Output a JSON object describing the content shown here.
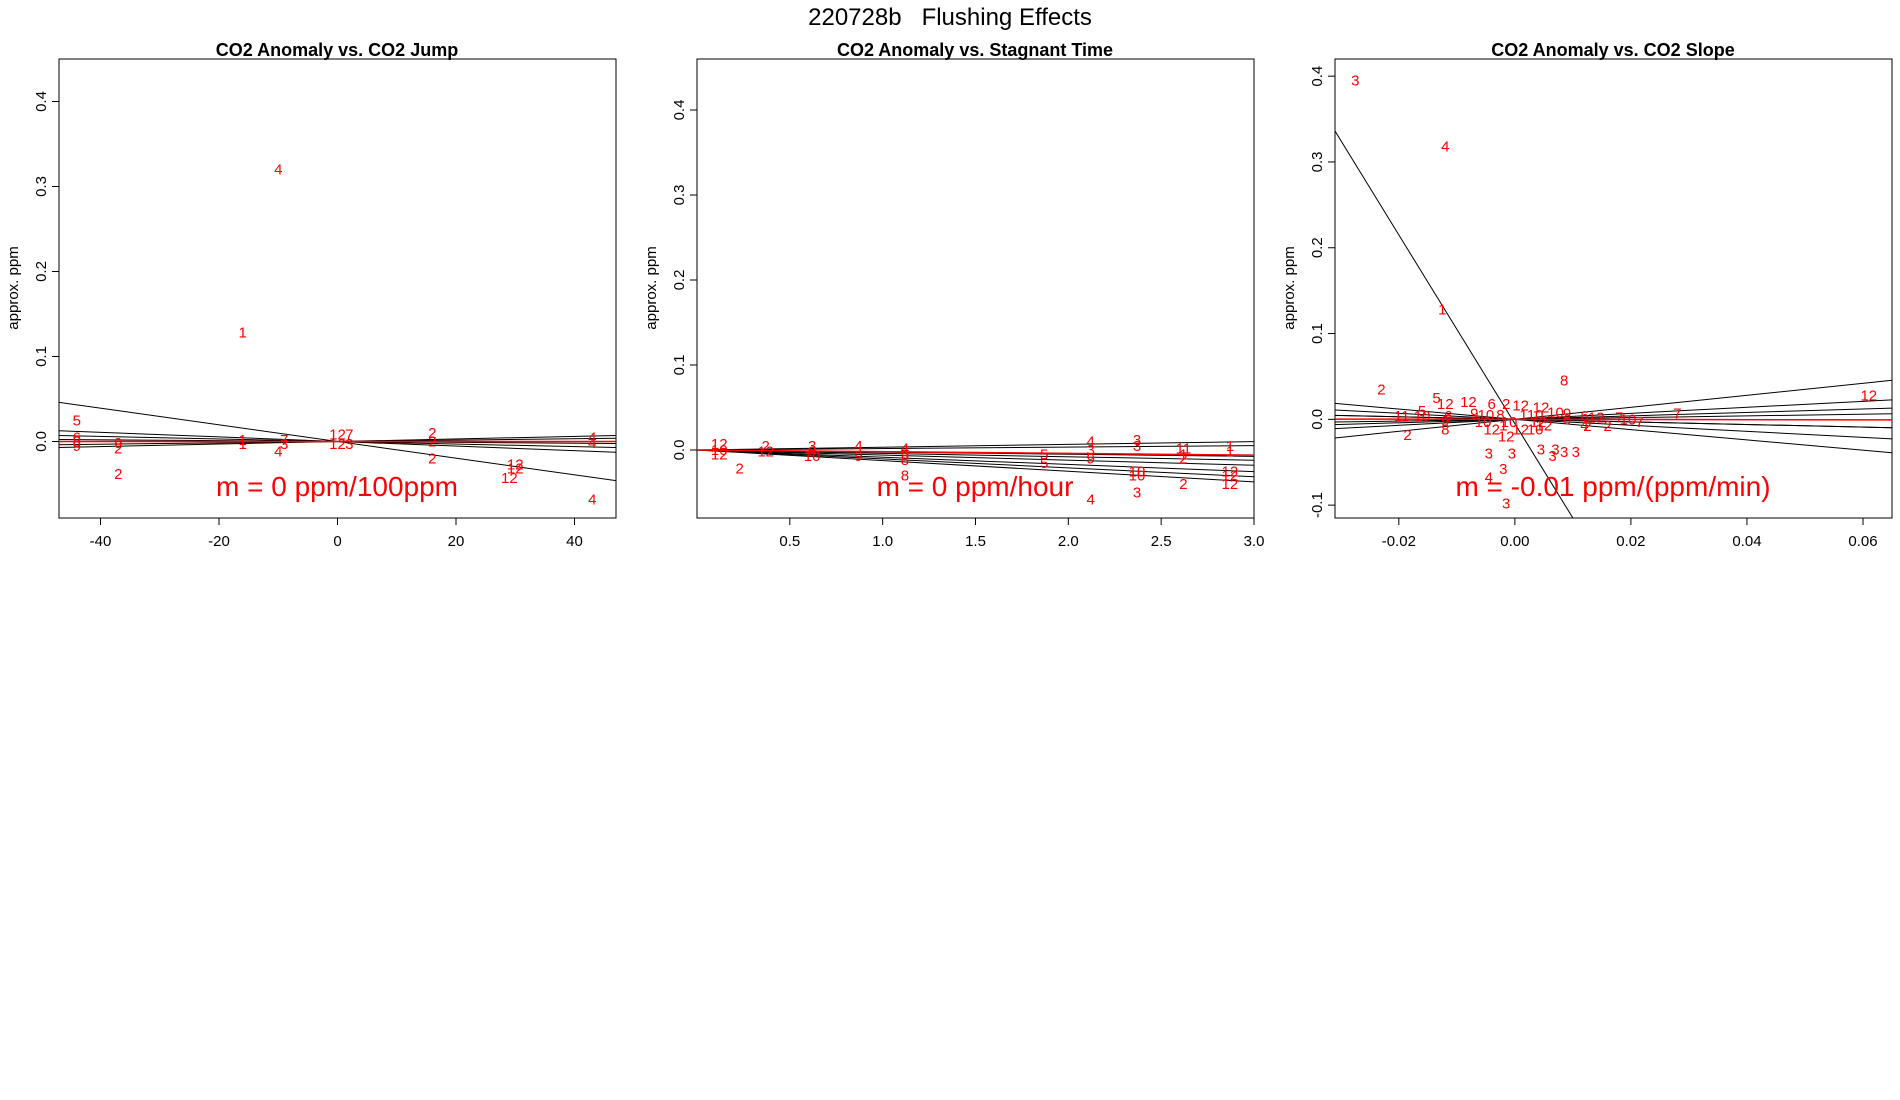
{
  "page_title": "220728b   Flushing Effects",
  "colors": {
    "points": "#ff0000",
    "fit_line": "#000000",
    "mean_line": "#ff0000",
    "axis": "#000000"
  },
  "chart_data": [
    {
      "type": "scatter",
      "title": "CO2 Anomaly vs. CO2 Jump",
      "xlabel": "",
      "ylabel": "approx. ppm",
      "xlim": [
        -47,
        47
      ],
      "ylim": [
        -0.09,
        0.45
      ],
      "xticks": [
        -40,
        -20,
        0,
        20,
        40
      ],
      "yticks": [
        0.0,
        0.1,
        0.2,
        0.3,
        0.4
      ],
      "xtick_labels": [
        "-40",
        "-20",
        "0",
        "20",
        "40"
      ],
      "ytick_labels": [
        "0.0",
        "0.1",
        "0.2",
        "0.3",
        "0.4"
      ],
      "slope_text": "m = 0 ppm/100ppm",
      "points": [
        {
          "x": -44,
          "y": 0.025,
          "label": "5"
        },
        {
          "x": -44,
          "y": 0.005,
          "label": "6"
        },
        {
          "x": -44,
          "y": 0.0,
          "label": "8"
        },
        {
          "x": -44,
          "y": -0.005,
          "label": "9"
        },
        {
          "x": -37,
          "y": -0.002,
          "label": "9"
        },
        {
          "x": -37,
          "y": -0.008,
          "label": "2"
        },
        {
          "x": -37,
          "y": -0.038,
          "label": "2"
        },
        {
          "x": -16,
          "y": 0.128,
          "label": "1"
        },
        {
          "x": -16,
          "y": 0.002,
          "label": "1"
        },
        {
          "x": -16,
          "y": -0.003,
          "label": "1"
        },
        {
          "x": -10,
          "y": 0.32,
          "label": "4"
        },
        {
          "x": -9,
          "y": 0.002,
          "label": "7"
        },
        {
          "x": -9,
          "y": -0.003,
          "label": "3"
        },
        {
          "x": -10,
          "y": -0.012,
          "label": "4"
        },
        {
          "x": 0,
          "y": 0.008,
          "label": "12"
        },
        {
          "x": 2,
          "y": 0.008,
          "label": "7"
        },
        {
          "x": 0,
          "y": -0.003,
          "label": "12"
        },
        {
          "x": 2,
          "y": -0.003,
          "label": "3"
        },
        {
          "x": 16,
          "y": 0.01,
          "label": "2"
        },
        {
          "x": 16,
          "y": 0.0,
          "label": "2"
        },
        {
          "x": 16,
          "y": -0.02,
          "label": "2"
        },
        {
          "x": 30,
          "y": -0.027,
          "label": "12"
        },
        {
          "x": 30,
          "y": -0.032,
          "label": "12"
        },
        {
          "x": 29,
          "y": -0.043,
          "label": "12"
        },
        {
          "x": 43,
          "y": 0.005,
          "label": "4"
        },
        {
          "x": 43,
          "y": -0.002,
          "label": "4"
        },
        {
          "x": 43,
          "y": -0.068,
          "label": "4"
        }
      ],
      "fit_lines": [
        {
          "intercept": 0.0,
          "slope": -0.00098
        },
        {
          "intercept": 0.0,
          "slope": 0.00015
        },
        {
          "intercept": 0.0,
          "slope": -0.00015
        },
        {
          "intercept": 0.0,
          "slope": -0.00027
        },
        {
          "intercept": 0.0,
          "slope": 8e-05
        },
        {
          "intercept": 0.0,
          "slope": -5e-05
        }
      ],
      "mean_line": {
        "intercept": 0.0,
        "slope": 0.0
      }
    },
    {
      "type": "scatter",
      "title": "CO2 Anomaly vs. Stagnant Time",
      "xlabel": "",
      "ylabel": "approx. ppm",
      "xlim": [
        0.0,
        3.0
      ],
      "ylim": [
        -0.08,
        0.46
      ],
      "xticks": [
        0.5,
        1.0,
        1.5,
        2.0,
        2.5,
        3.0
      ],
      "yticks": [
        0.0,
        0.1,
        0.2,
        0.3,
        0.4
      ],
      "xtick_labels": [
        "0.5",
        "1.0",
        "1.5",
        "2.0",
        "2.5",
        "3.0"
      ],
      "ytick_labels": [
        "0.0",
        "0.1",
        "0.2",
        "0.3",
        "0.4"
      ],
      "slope_text": "m = 0 ppm/hour",
      "points": [
        {
          "x": 0.12,
          "y": 0.007,
          "label": "12"
        },
        {
          "x": 0.12,
          "y": 0.0,
          "label": "10"
        },
        {
          "x": 0.12,
          "y": -0.005,
          "label": "12"
        },
        {
          "x": 0.23,
          "y": -0.022,
          "label": "2"
        },
        {
          "x": 0.37,
          "y": 0.005,
          "label": "2"
        },
        {
          "x": 0.37,
          "y": -0.002,
          "label": "12"
        },
        {
          "x": 0.62,
          "y": 0.005,
          "label": "3"
        },
        {
          "x": 0.62,
          "y": -0.002,
          "label": "9"
        },
        {
          "x": 0.62,
          "y": -0.007,
          "label": "10"
        },
        {
          "x": 0.87,
          "y": 0.005,
          "label": "4"
        },
        {
          "x": 0.87,
          "y": -0.007,
          "label": "9"
        },
        {
          "x": 1.12,
          "y": 0.002,
          "label": "4"
        },
        {
          "x": 1.12,
          "y": -0.005,
          "label": "5"
        },
        {
          "x": 1.12,
          "y": -0.012,
          "label": "8"
        },
        {
          "x": 1.12,
          "y": -0.03,
          "label": "8"
        },
        {
          "x": 1.87,
          "y": -0.005,
          "label": "5"
        },
        {
          "x": 1.87,
          "y": -0.015,
          "label": "5"
        },
        {
          "x": 2.12,
          "y": 0.01,
          "label": "4"
        },
        {
          "x": 2.12,
          "y": 0.0,
          "label": "3"
        },
        {
          "x": 2.12,
          "y": -0.01,
          "label": "9"
        },
        {
          "x": 2.12,
          "y": -0.058,
          "label": "4"
        },
        {
          "x": 2.37,
          "y": 0.012,
          "label": "3"
        },
        {
          "x": 2.37,
          "y": 0.005,
          "label": "3"
        },
        {
          "x": 2.37,
          "y": -0.025,
          "label": "10"
        },
        {
          "x": 2.37,
          "y": -0.03,
          "label": "10"
        },
        {
          "x": 2.37,
          "y": -0.05,
          "label": "3"
        },
        {
          "x": 2.62,
          "y": 0.002,
          "label": "11"
        },
        {
          "x": 2.62,
          "y": -0.005,
          "label": "1"
        },
        {
          "x": 2.62,
          "y": -0.01,
          "label": "2"
        },
        {
          "x": 2.62,
          "y": -0.04,
          "label": "2"
        },
        {
          "x": 2.87,
          "y": 0.005,
          "label": "1"
        },
        {
          "x": 2.87,
          "y": -0.002,
          "label": "1"
        },
        {
          "x": 2.87,
          "y": -0.025,
          "label": "12"
        },
        {
          "x": 2.87,
          "y": -0.03,
          "label": "12"
        },
        {
          "x": 2.87,
          "y": -0.04,
          "label": "12"
        }
      ],
      "fit_lines": [
        {
          "intercept": 0.0,
          "slope": -0.0125
        },
        {
          "intercept": 0.0,
          "slope": -0.0105
        },
        {
          "intercept": 0.0,
          "slope": 0.0033
        },
        {
          "intercept": 0.0,
          "slope": 0.0017
        },
        {
          "intercept": 0.0,
          "slope": -0.0025
        },
        {
          "intercept": 0.0,
          "slope": -0.004
        },
        {
          "intercept": 0.0,
          "slope": -0.006
        },
        {
          "intercept": 0.0,
          "slope": -0.0085
        }
      ],
      "mean_line": {
        "intercept": 0.0,
        "slope": -0.002
      }
    },
    {
      "type": "scatter",
      "title": "CO2 Anomaly vs. CO2 Slope",
      "xlabel": "",
      "ylabel": "approx. ppm",
      "xlim": [
        -0.031,
        0.065
      ],
      "ylim": [
        -0.115,
        0.42
      ],
      "xticks": [
        -0.02,
        0.0,
        0.02,
        0.04,
        0.06
      ],
      "yticks": [
        -0.1,
        0.0,
        0.1,
        0.2,
        0.3,
        0.4
      ],
      "xtick_labels": [
        "-0.02",
        "0.00",
        "0.02",
        "0.04",
        "0.06"
      ],
      "ytick_labels": [
        "-0.1",
        "0.0",
        "0.1",
        "0.2",
        "0.3",
        "0.4"
      ],
      "slope_text": "m = -0.01 ppm/(ppm/min)",
      "points": [
        {
          "x": -0.0275,
          "y": 0.395,
          "label": "3"
        },
        {
          "x": -0.012,
          "y": 0.318,
          "label": "4"
        },
        {
          "x": -0.0125,
          "y": 0.128,
          "label": "1"
        },
        {
          "x": -0.023,
          "y": 0.035,
          "label": "2"
        },
        {
          "x": -0.0135,
          "y": 0.025,
          "label": "5"
        },
        {
          "x": -0.012,
          "y": 0.018,
          "label": "12"
        },
        {
          "x": -0.008,
          "y": 0.02,
          "label": "12"
        },
        {
          "x": -0.016,
          "y": 0.01,
          "label": "5"
        },
        {
          "x": -0.0195,
          "y": 0.004,
          "label": "11"
        },
        {
          "x": -0.016,
          "y": 0.004,
          "label": "10"
        },
        {
          "x": -0.0115,
          "y": 0.004,
          "label": "6"
        },
        {
          "x": -0.007,
          "y": 0.007,
          "label": "9"
        },
        {
          "x": -0.004,
          "y": 0.018,
          "label": "6"
        },
        {
          "x": -0.0015,
          "y": 0.018,
          "label": "2"
        },
        {
          "x": 0.001,
          "y": 0.016,
          "label": "12"
        },
        {
          "x": 0.0045,
          "y": 0.014,
          "label": "12"
        },
        {
          "x": 0.007,
          "y": 0.008,
          "label": "10"
        },
        {
          "x": 0.009,
          "y": 0.007,
          "label": "9"
        },
        {
          "x": 0.012,
          "y": 0.004,
          "label": "6"
        },
        {
          "x": 0.014,
          "y": 0.002,
          "label": "12"
        },
        {
          "x": -0.005,
          "y": 0.005,
          "label": "10"
        },
        {
          "x": -0.0025,
          "y": 0.005,
          "label": "8"
        },
        {
          "x": 0.0015,
          "y": 0.005,
          "label": "1"
        },
        {
          "x": 0.0035,
          "y": 0.005,
          "label": "10"
        },
        {
          "x": 0.009,
          "y": 0.0,
          "label": "6"
        },
        {
          "x": -0.012,
          "y": -0.002,
          "label": "9"
        },
        {
          "x": -0.0055,
          "y": -0.003,
          "label": "10"
        },
        {
          "x": -0.001,
          "y": -0.003,
          "label": "10"
        },
        {
          "x": 0.004,
          "y": -0.003,
          "label": "12"
        },
        {
          "x": -0.002,
          "y": -0.007,
          "label": "1"
        },
        {
          "x": 0.005,
          "y": -0.007,
          "label": "12"
        },
        {
          "x": 0.012,
          "y": -0.007,
          "label": "4"
        },
        {
          "x": 0.0125,
          "y": -0.008,
          "label": "2"
        },
        {
          "x": 0.016,
          "y": -0.008,
          "label": "2"
        },
        {
          "x": -0.012,
          "y": -0.012,
          "label": "8"
        },
        {
          "x": -0.0185,
          "y": -0.018,
          "label": "2"
        },
        {
          "x": -0.004,
          "y": -0.012,
          "label": "12"
        },
        {
          "x": -0.0015,
          "y": -0.02,
          "label": "12"
        },
        {
          "x": 0.001,
          "y": -0.012,
          "label": "12"
        },
        {
          "x": 0.0035,
          "y": -0.012,
          "label": "10"
        },
        {
          "x": 0.018,
          "y": 0.002,
          "label": "7"
        },
        {
          "x": 0.0195,
          "y": 0.0,
          "label": "10"
        },
        {
          "x": 0.0215,
          "y": -0.003,
          "label": "7"
        },
        {
          "x": 0.028,
          "y": 0.007,
          "label": "7"
        },
        {
          "x": 0.0085,
          "y": 0.045,
          "label": "8"
        },
        {
          "x": -0.0045,
          "y": -0.04,
          "label": "3"
        },
        {
          "x": -0.0005,
          "y": -0.04,
          "label": "3"
        },
        {
          "x": -0.002,
          "y": -0.058,
          "label": "3"
        },
        {
          "x": -0.0045,
          "y": -0.068,
          "label": "4"
        },
        {
          "x": 0.0045,
          "y": -0.035,
          "label": "3"
        },
        {
          "x": 0.007,
          "y": -0.035,
          "label": "3"
        },
        {
          "x": 0.0065,
          "y": -0.043,
          "label": "3"
        },
        {
          "x": 0.0085,
          "y": -0.038,
          "label": "3"
        },
        {
          "x": 0.0105,
          "y": -0.038,
          "label": "3"
        },
        {
          "x": -0.0015,
          "y": -0.098,
          "label": "3"
        },
        {
          "x": 0.061,
          "y": 0.028,
          "label": "12"
        }
      ],
      "fit_lines": [
        {
          "intercept": -0.005,
          "slope": -11.0
        },
        {
          "intercept": 0.0,
          "slope": 0.7
        },
        {
          "intercept": 0.0,
          "slope": 0.35
        },
        {
          "intercept": 0.0,
          "slope": 0.2
        },
        {
          "intercept": 0.0,
          "slope": -0.15
        },
        {
          "intercept": 0.0,
          "slope": -0.35
        },
        {
          "intercept": 0.0,
          "slope": -0.6
        },
        {
          "intercept": 0.0,
          "slope": -0.15
        },
        {
          "intercept": 0.0,
          "slope": 0.1
        }
      ],
      "mean_line": {
        "intercept": 0.0,
        "slope": -0.01
      }
    }
  ]
}
